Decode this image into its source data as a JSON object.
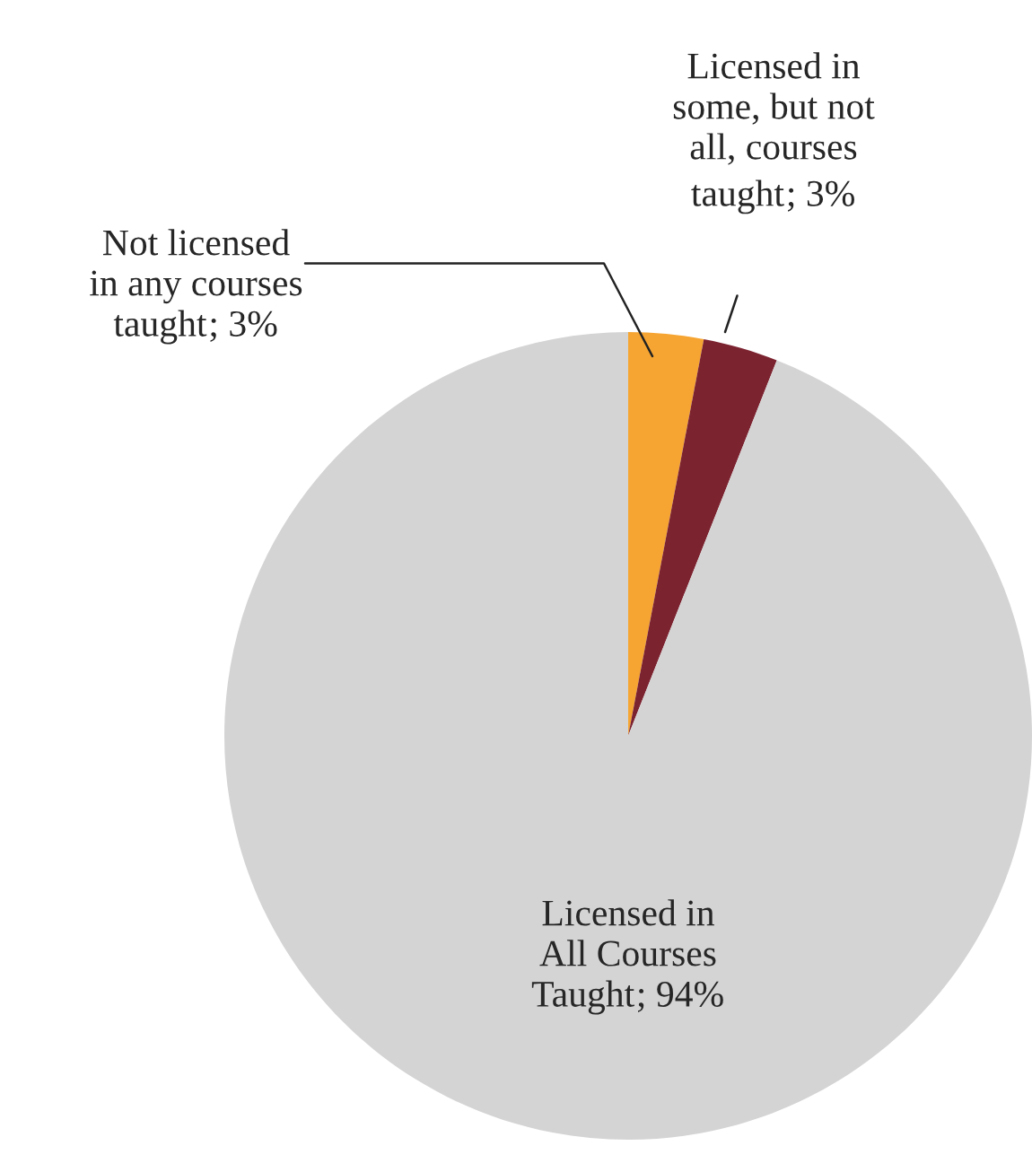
{
  "chart_data": {
    "type": "pie",
    "categories": [
      "Not licensed\nin any courses\ntaught",
      "Licensed in\nsome, but not\nall, courses\ntaught",
      "Licensed in\nAll Courses\nTaught"
    ],
    "value_labels": [
      "; 3%",
      "; 3%",
      "; 94%"
    ],
    "values": [
      3,
      3,
      94
    ],
    "colors": [
      "#f6a532",
      "#7c2330",
      "#d4d4d4"
    ]
  }
}
